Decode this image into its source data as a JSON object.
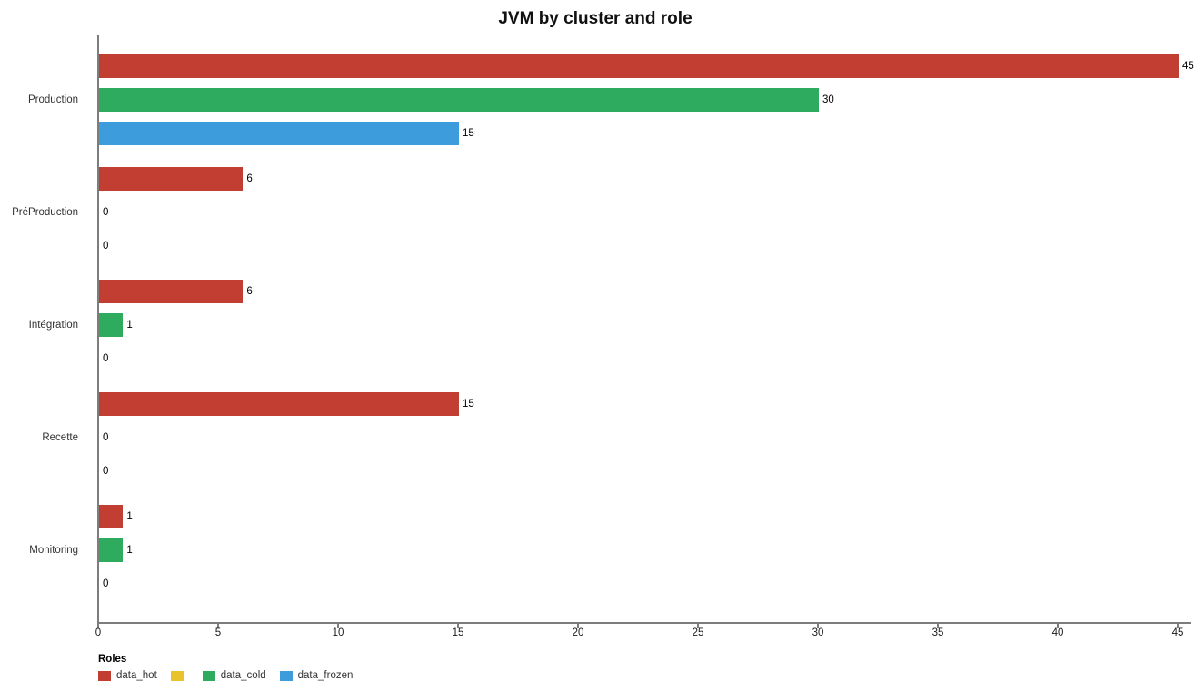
{
  "chart_data": {
    "type": "bar",
    "orientation": "horizontal",
    "title": "JVM by cluster and role",
    "categories": [
      "Production",
      "PréProduction",
      "Intégration",
      "Recette",
      "Monitoring"
    ],
    "series": [
      {
        "name": "data_hot",
        "color": "#c23d32",
        "values": [
          45,
          6,
          6,
          15,
          1
        ]
      },
      {
        "name": "data_cold",
        "color": "#2eab5e",
        "values": [
          30,
          0,
          1,
          0,
          1
        ]
      },
      {
        "name": "data_frozen",
        "color": "#3d9cdb",
        "values": [
          15,
          0,
          0,
          0,
          0
        ]
      }
    ],
    "xlim": [
      0,
      45
    ],
    "x_ticks": [
      0,
      5,
      10,
      15,
      20,
      25,
      30,
      35,
      40,
      45
    ],
    "grid": false,
    "value_labels": true,
    "legend_position": "bottom"
  },
  "legend": {
    "title": "Roles",
    "items": [
      {
        "label": "data_hot",
        "color": "#c23d32"
      },
      {
        "label": "",
        "color": "#e9c32b"
      },
      {
        "label": "data_cold",
        "color": "#2eab5e"
      },
      {
        "label": "data_frozen",
        "color": "#3d9cdb"
      }
    ]
  },
  "colors": {
    "axis": "#7d7d7d",
    "background": "#ffffff"
  }
}
